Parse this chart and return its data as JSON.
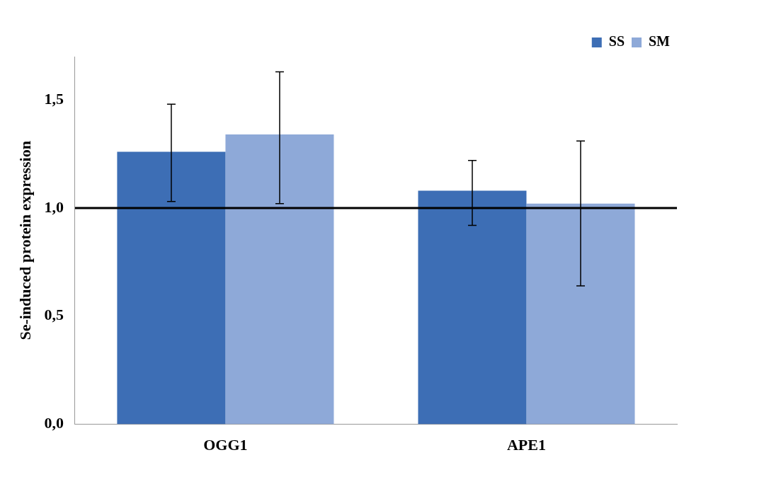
{
  "chart_data": {
    "type": "bar",
    "ylabel": "Se-induced protein expression",
    "categories": [
      "OGG1",
      "APE1"
    ],
    "series": [
      {
        "name": "SS",
        "color": "#3d6eb5",
        "values": [
          1.26,
          1.08
        ],
        "errors": [
          [
            1.03,
            1.48
          ],
          [
            0.92,
            1.22
          ]
        ]
      },
      {
        "name": "SM",
        "color": "#8ea9d8",
        "values": [
          1.34,
          1.02
        ],
        "errors": [
          [
            1.02,
            1.63
          ],
          [
            0.64,
            1.31
          ]
        ]
      }
    ],
    "ylim": [
      0,
      1.7
    ],
    "yticks": [
      {
        "value": 0,
        "label": "0,0"
      },
      {
        "value": 0.5,
        "label": "0,5"
      },
      {
        "value": 1,
        "label": "1,0"
      },
      {
        "value": 1.5,
        "label": "1,5"
      }
    ],
    "ref_lines": [
      {
        "axis": "y",
        "value": 1,
        "color": "#000000"
      }
    ],
    "grid": false,
    "legend": "top right"
  }
}
